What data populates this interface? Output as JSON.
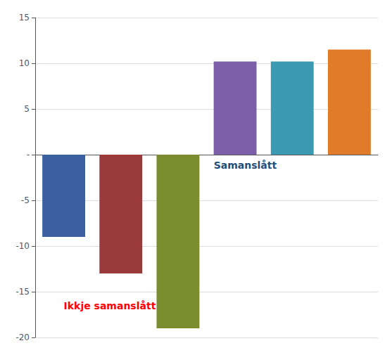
{
  "chart_data": {
    "type": "bar",
    "categories": [
      null,
      null,
      null,
      null,
      null,
      null
    ],
    "values": [
      -9,
      -13,
      -19,
      10.2,
      10.2,
      11.5
    ],
    "colors": [
      "#3b5fa0",
      "#9b3a3a",
      "#7a8c2e",
      "#7b5ea7",
      "#3b9ab2",
      "#e07b2a"
    ],
    "ylim": [
      -20,
      15
    ],
    "yticks": [
      -20,
      -15,
      -10,
      -5,
      {
        "value": 0,
        "label": "-"
      },
      5,
      10,
      15
    ],
    "grid": true,
    "tick_labels": "y",
    "annotations": [
      {
        "text": "Ikkje samanslått",
        "color": "#ff0000"
      },
      {
        "text": "Samanslått",
        "color": "#1f4e79"
      }
    ]
  }
}
